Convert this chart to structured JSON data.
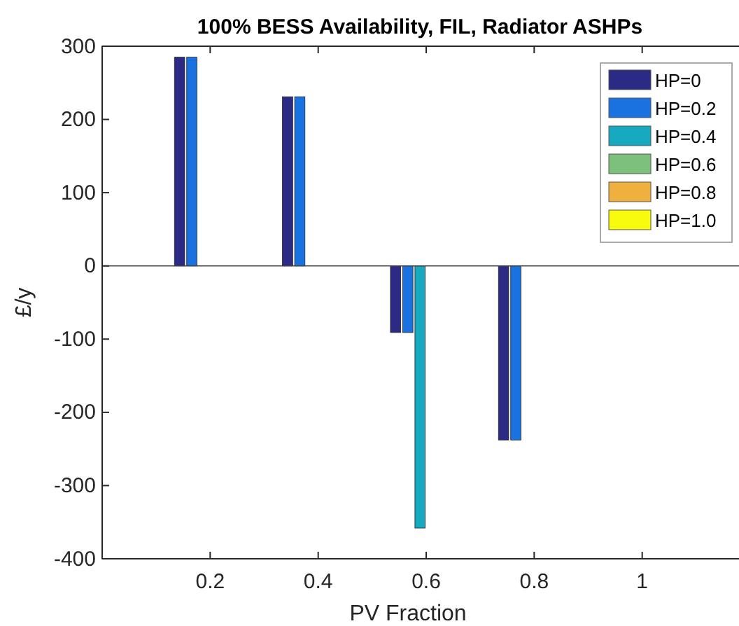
{
  "chart_data": {
    "type": "bar",
    "title": "100% BESS Availability, FIL, Radiator ASHPs",
    "xlabel": "PV Fraction",
    "ylabel": "£/y",
    "x": [
      0.2,
      0.4,
      0.6,
      0.8
    ],
    "series": [
      {
        "name": "HP=0",
        "color": "#2b2a84",
        "values": [
          285,
          231,
          -91,
          -238
        ]
      },
      {
        "name": "HP=0.2",
        "color": "#1a72e0",
        "values": [
          285,
          231,
          -91,
          -238
        ]
      },
      {
        "name": "HP=0.4",
        "color": "#17a9c0",
        "values": [
          null,
          null,
          -358,
          null
        ]
      },
      {
        "name": "HP=0.6",
        "color": "#7cc07c",
        "values": [
          null,
          null,
          null,
          null
        ]
      },
      {
        "name": "HP=0.8",
        "color": "#f0b040",
        "values": [
          null,
          null,
          null,
          null
        ]
      },
      {
        "name": "HP=1.0",
        "color": "#f9fb0e",
        "values": [
          null,
          null,
          null,
          null
        ]
      }
    ],
    "xlim": [
      0,
      1.2
    ],
    "xticks": [
      0.2,
      0.4,
      0.6,
      0.8,
      1
    ],
    "ylim": [
      -400,
      300
    ],
    "yticks": [
      -400,
      -300,
      -200,
      -100,
      0,
      100,
      200,
      300
    ],
    "ref_lines": [
      {
        "axis": "y",
        "value": 0,
        "color": "#444444"
      }
    ],
    "legend": "top right"
  }
}
